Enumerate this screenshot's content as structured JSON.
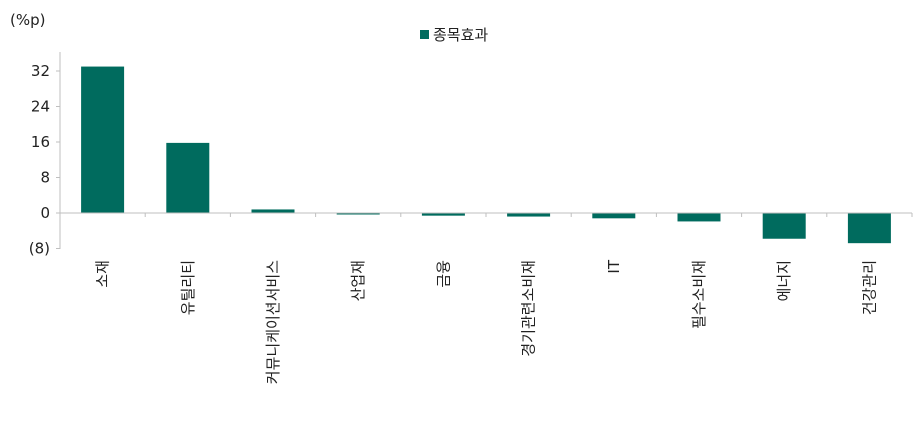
{
  "chart_data": {
    "type": "bar",
    "unit_label": "(%p)",
    "categories": [
      "소재",
      "유틸리티",
      "커뮤니케이션서비스",
      "산업재",
      "금융",
      "경기관련소비재",
      "IT",
      "필수소비재",
      "에너지",
      "건강관리"
    ],
    "series": [
      {
        "name": "종목효과",
        "color": "#006b5e",
        "values": [
          33.0,
          15.8,
          0.8,
          -0.3,
          -0.6,
          -0.8,
          -1.2,
          -1.9,
          -5.8,
          -6.8
        ]
      }
    ],
    "yticks": [
      32,
      24,
      16,
      8,
      0,
      -8
    ],
    "ytick_labels": [
      "32",
      "24",
      "16",
      "8",
      "0",
      "(8)"
    ],
    "ylim": [
      -8,
      36
    ],
    "legend_position": "top-center",
    "grid": false
  }
}
